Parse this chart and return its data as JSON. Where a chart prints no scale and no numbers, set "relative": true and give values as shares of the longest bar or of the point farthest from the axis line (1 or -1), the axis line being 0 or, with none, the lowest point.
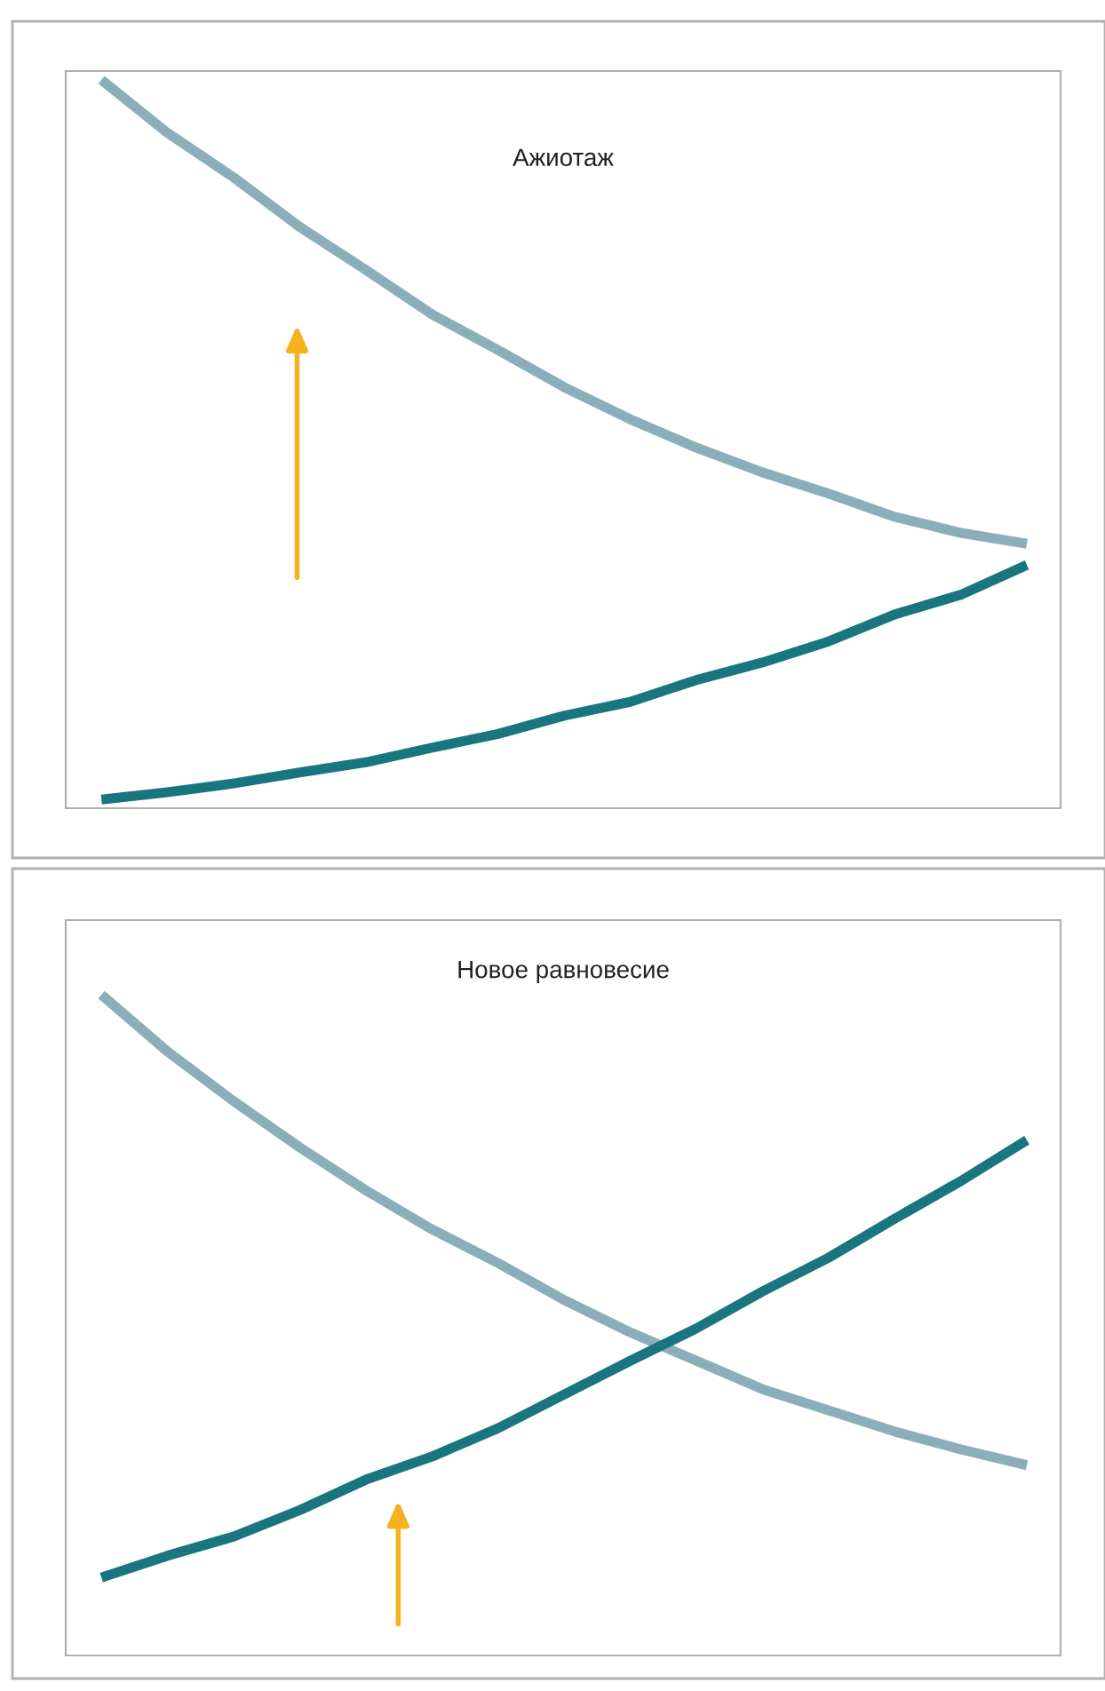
{
  "chart_data": [
    {
      "type": "line",
      "relative": true,
      "annotations": [
        "Ажиотаж"
      ],
      "categories": [
        null,
        null,
        null,
        null,
        null,
        null,
        null,
        null,
        null,
        null,
        null,
        null,
        null,
        null,
        null
      ],
      "series": [
        {
          "color": "#8aafba",
          "values": [
            1.0,
            0.927,
            0.866,
            0.798,
            0.739,
            0.678,
            0.629,
            0.578,
            0.534,
            0.495,
            0.461,
            0.432,
            0.4,
            0.378,
            0.363
          ]
        },
        {
          "color": "#19757f",
          "values": [
            0.012,
            0.022,
            0.034,
            0.049,
            0.063,
            0.083,
            0.102,
            0.127,
            0.146,
            0.176,
            0.2,
            0.229,
            0.266,
            0.293,
            0.334
          ]
        }
      ]
    },
    {
      "type": "line",
      "relative": true,
      "annotations": [
        "Новое равновесие"
      ],
      "categories": [
        null,
        null,
        null,
        null,
        null,
        null,
        null,
        null,
        null,
        null,
        null,
        null,
        null,
        null,
        null
      ],
      "series": [
        {
          "color": "#8aafba",
          "values": [
            1.0,
            0.914,
            0.839,
            0.769,
            0.704,
            0.645,
            0.594,
            0.538,
            0.489,
            0.446,
            0.403,
            0.371,
            0.339,
            0.312,
            0.288
          ]
        },
        {
          "color": "#19757f",
          "values": [
            0.118,
            0.151,
            0.18,
            0.22,
            0.266,
            0.301,
            0.344,
            0.395,
            0.446,
            0.495,
            0.551,
            0.602,
            0.661,
            0.718,
            0.78
          ]
        }
      ]
    }
  ]
}
